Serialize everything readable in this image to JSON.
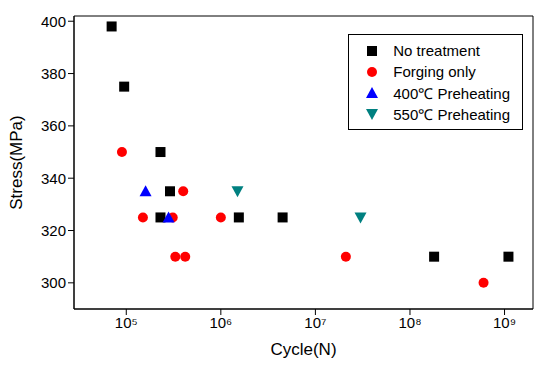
{
  "chart_data": {
    "type": "scatter",
    "x_label": "Cycle(N)",
    "y_label": "Stress(MPa)",
    "log": "x",
    "legend": "upper right",
    "xlim": [
      28000,
      2000000000
    ],
    "xticks": [
      {
        "value": 100000,
        "label": "10⁵"
      },
      {
        "value": 1000000,
        "label": "10⁶"
      },
      {
        "value": 10000000,
        "label": "10⁷"
      },
      {
        "value": 100000000,
        "label": "10⁸"
      },
      {
        "value": 1000000000,
        "label": "10⁹"
      }
    ],
    "ylim": [
      290,
      402
    ],
    "yticks": [
      300,
      320,
      340,
      360,
      380,
      400
    ],
    "series": [
      {
        "name": "No treatment",
        "color": "#000000",
        "marker": "square",
        "x": [
          70000,
          95000,
          230000,
          230000,
          290000,
          1550000,
          4500000,
          180000000,
          1100000000
        ],
        "values": [
          398,
          375,
          350,
          325,
          335,
          325,
          325,
          310,
          310
        ]
      },
      {
        "name": "Forging only",
        "color": "#ff0000",
        "marker": "circle",
        "x": [
          90000,
          150000,
          310000,
          330000,
          400000,
          420000,
          1000000,
          21000000,
          600000000
        ],
        "values": [
          350,
          325,
          325,
          310,
          335,
          310,
          325,
          310,
          300
        ]
      },
      {
        "name": "400℃ Preheating",
        "color": "#0000ff",
        "marker": "triangle",
        "x": [
          160000,
          280000
        ],
        "values": [
          335,
          325
        ]
      },
      {
        "name": "550℃ Preheating",
        "color": "#008080",
        "marker": "triangle_down",
        "x": [
          1500000,
          30000000
        ],
        "values": [
          335,
          325
        ]
      }
    ]
  }
}
